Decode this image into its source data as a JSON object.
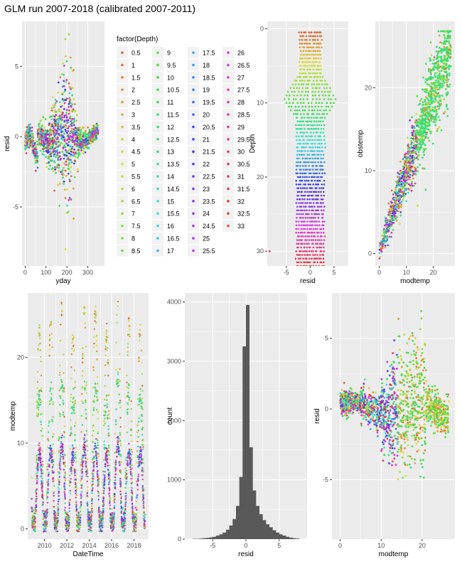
{
  "title": "GLM run 2007-2018 (calibrated 2007-2011)",
  "legend": {
    "title": "factor(Depth)",
    "levels": [
      "0.5",
      "1",
      "1.5",
      "2",
      "2.5",
      "3",
      "3.5",
      "4",
      "4.5",
      "5",
      "5.5",
      "6",
      "6.5",
      "7",
      "7.5",
      "8",
      "8.5",
      "9",
      "9.5",
      "10",
      "10.5",
      "11",
      "11.5",
      "12",
      "12.5",
      "13",
      "13.5",
      "14",
      "14.5",
      "15",
      "15.5",
      "16",
      "16.5",
      "17",
      "17.5",
      "18",
      "18.5",
      "19",
      "19.5",
      "20",
      "20.5",
      "21",
      "21.5",
      "22",
      "22.5",
      "23",
      "23.5",
      "24",
      "24.5",
      "25",
      "25.5",
      "26",
      "26.5",
      "27",
      "27.5",
      "28",
      "28.5",
      "29",
      "29.5",
      "30",
      "30.5",
      "31",
      "31.5",
      "32",
      "32.5",
      "33"
    ]
  },
  "chart_data": [
    {
      "id": "resid-yday",
      "type": "scatter",
      "xlabel": "yday",
      "ylabel": "resid",
      "xlim": [
        -15,
        380
      ],
      "ylim": [
        -9.2,
        8.2
      ],
      "xticks": [
        0,
        100,
        200,
        300
      ],
      "yticks": [
        -5,
        0,
        5
      ],
      "grid": true
    },
    {
      "id": "depth-resid",
      "type": "scatter",
      "xlabel": "resid",
      "ylabel": "Depth",
      "xlim": [
        -9,
        8
      ],
      "ylim": [
        -1,
        32
      ],
      "y_reversed": true,
      "xticks": [
        -5,
        0,
        5
      ],
      "yticks": [
        0,
        10,
        20,
        30
      ],
      "grid": true
    },
    {
      "id": "obstemp-modtemp",
      "type": "scatter",
      "xlabel": "modtemp",
      "ylabel": "obstemp",
      "xlim": [
        -1.5,
        28
      ],
      "ylim": [
        -1.5,
        28
      ],
      "xticks": [
        0,
        10,
        20
      ],
      "yticks": [
        0,
        10,
        20
      ],
      "grid": true
    },
    {
      "id": "modtemp-datetime",
      "type": "scatter",
      "xlabel": "DateTime",
      "ylabel": "modtemp",
      "xlim": [
        2008.5,
        2019.3
      ],
      "ylim": [
        -1.2,
        27.5
      ],
      "xticks": [
        2010,
        2012,
        2014,
        2016,
        2018
      ],
      "yticks": [
        0,
        10,
        20
      ],
      "grid": true
    },
    {
      "id": "resid-histogram",
      "type": "bar",
      "xlabel": "resid",
      "ylabel": "count",
      "xlim": [
        -9.2,
        9.2
      ],
      "ylim": [
        0,
        4150
      ],
      "xticks": [
        -5,
        0,
        5
      ],
      "yticks": [
        0,
        1000,
        2000,
        3000,
        4000
      ],
      "bin_width": 0.5,
      "bin_starts": [
        -8,
        -7.5,
        -7,
        -6.5,
        -6,
        -5.5,
        -5,
        -4.5,
        -4,
        -3.5,
        -3,
        -2.5,
        -2,
        -1.5,
        -1,
        -0.5,
        0,
        0.5,
        1,
        1.5,
        2,
        2.5,
        3,
        3.5,
        4,
        4.5,
        5,
        5.5,
        6,
        6.5,
        7,
        7.5
      ],
      "values": [
        5,
        5,
        10,
        15,
        20,
        30,
        40,
        60,
        80,
        110,
        160,
        230,
        340,
        560,
        1050,
        3250,
        3950,
        1550,
        820,
        560,
        420,
        320,
        250,
        200,
        150,
        110,
        80,
        60,
        40,
        25,
        15,
        10
      ],
      "grid": true
    },
    {
      "id": "resid-modtemp",
      "type": "scatter",
      "xlabel": "modtemp",
      "ylabel": "resid",
      "xlim": [
        -2,
        28
      ],
      "ylim": [
        -9.2,
        8.2
      ],
      "xticks": [
        0,
        10,
        20
      ],
      "yticks": [
        -5,
        0,
        5
      ],
      "grid": true
    }
  ]
}
